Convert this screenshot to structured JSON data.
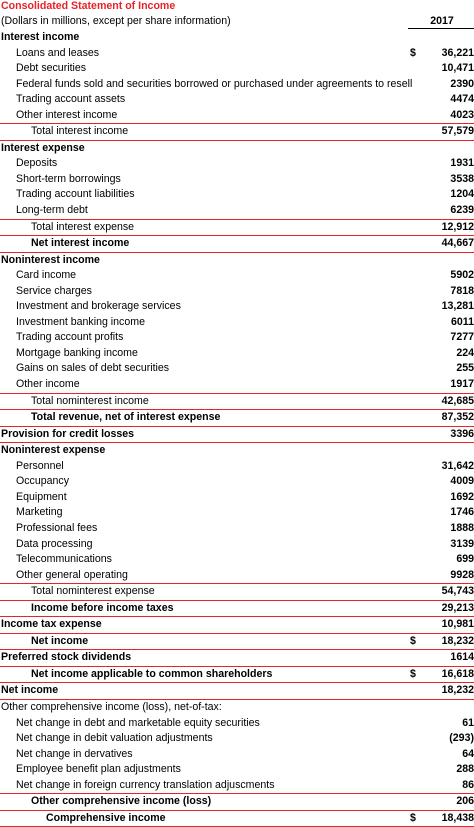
{
  "statement": {
    "title": "Consolidated Statement of Income",
    "subtitle": "(Dollars in millions, except per share information)",
    "year": "2017",
    "rows": [
      {
        "label": "Interest income",
        "value": "",
        "currency": "",
        "level": 0,
        "bold": true
      },
      {
        "label": "Loans and leases",
        "value": "36,221",
        "currency": "$",
        "level": 1,
        "bold": false
      },
      {
        "label": "Debt securities",
        "value": "10,471",
        "currency": "",
        "level": 1,
        "bold": false
      },
      {
        "label": "Federal funds sold and securities borrowed or purchased under agreements to resell",
        "value": "2390",
        "currency": "",
        "level": 1,
        "bold": false
      },
      {
        "label": "Trading account assets",
        "value": "4474",
        "currency": "",
        "level": 1,
        "bold": false
      },
      {
        "label": "Other interest income",
        "value": "4023",
        "currency": "",
        "level": 1,
        "bold": false,
        "rule": "bottom"
      },
      {
        "label": "Total interest income",
        "value": "57,579",
        "currency": "",
        "level": 2,
        "bold": false,
        "rule": "bottom"
      },
      {
        "label": "Interest expense",
        "value": "",
        "currency": "",
        "level": 0,
        "bold": true
      },
      {
        "label": "Deposits",
        "value": "1931",
        "currency": "",
        "level": 1,
        "bold": false
      },
      {
        "label": "Short-term borrowings",
        "value": "3538",
        "currency": "",
        "level": 1,
        "bold": false
      },
      {
        "label": "Trading account liabilities",
        "value": "1204",
        "currency": "",
        "level": 1,
        "bold": false
      },
      {
        "label": "Long-term debt",
        "value": "6239",
        "currency": "",
        "level": 1,
        "bold": false,
        "rule": "bottom"
      },
      {
        "label": "Total interest expense",
        "value": "12,912",
        "currency": "",
        "level": 2,
        "bold": false,
        "rule": "bottom"
      },
      {
        "label": "Net interest income",
        "value": "44,667",
        "currency": "",
        "level": 2,
        "bold": true,
        "rule": "bottom"
      },
      {
        "label": "Noninterest income",
        "value": "",
        "currency": "",
        "level": 0,
        "bold": true
      },
      {
        "label": "Card income",
        "value": "5902",
        "currency": "",
        "level": 1,
        "bold": false
      },
      {
        "label": "Service charges",
        "value": "7818",
        "currency": "",
        "level": 1,
        "bold": false
      },
      {
        "label": "Investment and brokerage services",
        "value": "13,281",
        "currency": "",
        "level": 1,
        "bold": false
      },
      {
        "label": "Investment banking income",
        "value": "6011",
        "currency": "",
        "level": 1,
        "bold": false
      },
      {
        "label": "Trading account profits",
        "value": "7277",
        "currency": "",
        "level": 1,
        "bold": false
      },
      {
        "label": "Mortgage banking income",
        "value": "224",
        "currency": "",
        "level": 1,
        "bold": false
      },
      {
        "label": "Gains on sales of debt securities",
        "value": "255",
        "currency": "",
        "level": 1,
        "bold": false
      },
      {
        "label": "Other income",
        "value": "1917",
        "currency": "",
        "level": 1,
        "bold": false,
        "rule": "bottom"
      },
      {
        "label": "Total nominterest income",
        "value": "42,685",
        "currency": "",
        "level": 2,
        "bold": false,
        "rule": "bottom"
      },
      {
        "label": "Total revenue, net of interest expense",
        "value": "87,352",
        "currency": "",
        "level": 2,
        "bold": true,
        "rule": "bottom"
      },
      {
        "label": "Provision for credit losses",
        "value": "3396",
        "currency": "",
        "level": 0,
        "bold": true,
        "rule": "bottom"
      },
      {
        "label": "Noninterest expense",
        "value": "",
        "currency": "",
        "level": 0,
        "bold": true
      },
      {
        "label": "Personnel",
        "value": "31,642",
        "currency": "",
        "level": 1,
        "bold": false
      },
      {
        "label": "Occupancy",
        "value": "4009",
        "currency": "",
        "level": 1,
        "bold": false
      },
      {
        "label": "Equipment",
        "value": "1692",
        "currency": "",
        "level": 1,
        "bold": false
      },
      {
        "label": "Marketing",
        "value": "1746",
        "currency": "",
        "level": 1,
        "bold": false
      },
      {
        "label": "Professional fees",
        "value": "1888",
        "currency": "",
        "level": 1,
        "bold": false
      },
      {
        "label": "Data processing",
        "value": "3139",
        "currency": "",
        "level": 1,
        "bold": false
      },
      {
        "label": "Telecommunications",
        "value": "699",
        "currency": "",
        "level": 1,
        "bold": false
      },
      {
        "label": "Other general operating",
        "value": "9928",
        "currency": "",
        "level": 1,
        "bold": false,
        "rule": "bottom"
      },
      {
        "label": "Total nominterest expense",
        "value": "54,743",
        "currency": "",
        "level": 2,
        "bold": false,
        "rule": "bottom"
      },
      {
        "label": "Income before income taxes",
        "value": "29,213",
        "currency": "",
        "level": 2,
        "bold": true,
        "rule": "bottom"
      },
      {
        "label": "Income tax expense",
        "value": "10,981",
        "currency": "",
        "level": 0,
        "bold": true,
        "rule": "bottom"
      },
      {
        "label": "Net income",
        "value": "18,232",
        "currency": "$",
        "level": 2,
        "bold": true,
        "rule": "bottom"
      },
      {
        "label": "Preferred stock dividends",
        "value": "1614",
        "currency": "",
        "level": 0,
        "bold": true,
        "rule": "bottom"
      },
      {
        "label": "Net income applicable to common shareholders",
        "value": "16,618",
        "currency": "$",
        "level": 2,
        "bold": true,
        "rule": "bottom"
      },
      {
        "label": "Net income",
        "value": "18,232",
        "currency": "",
        "level": 0,
        "bold": true,
        "rule": "bottom"
      },
      {
        "label": "Other comprehensive income (loss), net-of-tax:",
        "value": "",
        "currency": "",
        "level": 0,
        "bold": false
      },
      {
        "label": "Net change in debt and marketable equity securities",
        "value": "61",
        "currency": "",
        "level": 1,
        "bold": false
      },
      {
        "label": "Net change in debit valuation adjustments",
        "value": "(293)",
        "currency": "",
        "level": 1,
        "bold": false
      },
      {
        "label": "Net change in dervatives",
        "value": "64",
        "currency": "",
        "level": 1,
        "bold": false
      },
      {
        "label": "Employee benefit plan adjustments",
        "value": "288",
        "currency": "",
        "level": 1,
        "bold": false
      },
      {
        "label": "Net change in foreign currency translation adjuscments",
        "value": "86",
        "currency": "",
        "level": 1,
        "bold": false,
        "rule": "bottom"
      },
      {
        "label": "Other comprehensive income (loss)",
        "value": "206",
        "currency": "",
        "level": 2,
        "bold": true,
        "rule": "bottom"
      },
      {
        "label": "Comprehensive income",
        "value": "18,438",
        "currency": "$",
        "level": 3,
        "bold": true,
        "rule": "bottom"
      }
    ]
  },
  "colors": {
    "accent": "#e8232a",
    "text": "#000000"
  }
}
